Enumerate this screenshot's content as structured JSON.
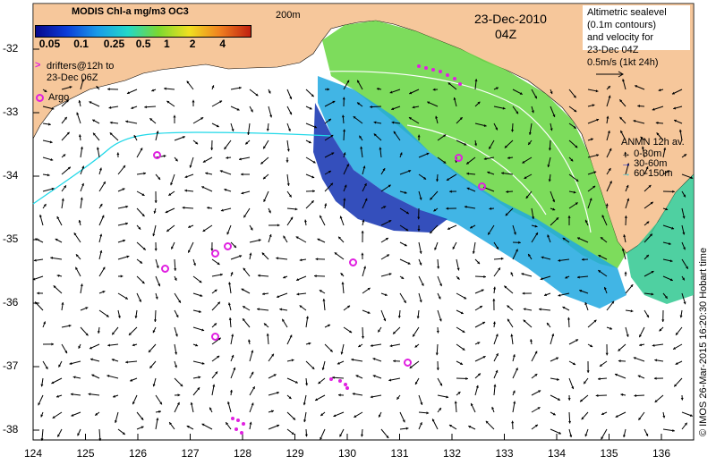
{
  "header": {
    "title": "MODIS Chl-a mg/m3 OC3",
    "depth_label": "200m",
    "date_label": "23-Dec-2010",
    "time_label": "04Z"
  },
  "colorbar": {
    "ticks": [
      "0.05",
      "0.1",
      "0.25",
      "0.5",
      "1",
      "2",
      "4"
    ],
    "colors": [
      "#08088c",
      "#0b3cd8",
      "#1a9ae8",
      "#22d8c8",
      "#7bd830",
      "#f0e020",
      "#f08020",
      "#c02010"
    ]
  },
  "legend_left": {
    "drifters_line1": "drifters@12h to",
    "drifters_line2": "23-Dec 06Z",
    "argo_label": "Argo",
    "drifter_symbol": ">"
  },
  "legend_right": {
    "line1": "Altimetric sealevel",
    "line2": "(0.1m contours)",
    "line3": "and velocity for",
    "line4": "23-Dec 04Z",
    "scale_label": "0.5m/s (1kt 24h)"
  },
  "anmn": {
    "title": "ANMN 12h av.",
    "items": [
      {
        "label": "0-30m",
        "color": "#000000"
      },
      {
        "label": "30-60m",
        "color": "#1020d0"
      },
      {
        "label": "60-150m",
        "color": "#20c8e0"
      }
    ]
  },
  "credit": "© IMOS 26-Mar-2015 16:20:30 Hobart time",
  "axes": {
    "x_ticks": [
      "124",
      "125",
      "126",
      "127",
      "128",
      "129",
      "130",
      "131",
      "132",
      "133",
      "134",
      "135",
      "136"
    ],
    "y_ticks": [
      "-32",
      "-33",
      "-34",
      "-35",
      "-36",
      "-37",
      "-38"
    ]
  },
  "colors": {
    "land": "#f6c79b",
    "argo": "#e020e0",
    "contour": "#20d8e8"
  }
}
